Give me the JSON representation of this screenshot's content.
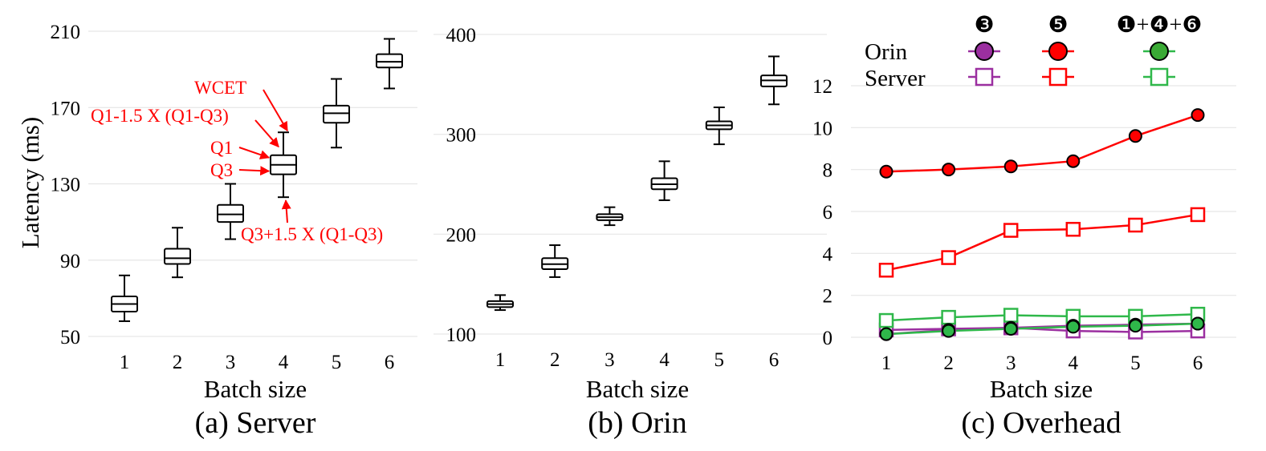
{
  "colors": {
    "orin_marker_purple": "#9b2fa0",
    "series_purple": "#9b2fa0",
    "series_red": "#ff0000",
    "series_green": "#2fb84a",
    "orin_marker_green": "#3aaa35",
    "annotation": "#ff0000",
    "grid": "#e6e6e6"
  },
  "chart_data": [
    {
      "type": "box",
      "caption": "(a) Server",
      "xlabel": "Batch size",
      "ylabel": "Latency (ms)",
      "ylim": [
        50,
        210
      ],
      "yticks": [
        50,
        90,
        130,
        170,
        210
      ],
      "categories": [
        "1",
        "2",
        "3",
        "4",
        "5",
        "6"
      ],
      "boxes": [
        {
          "x": "1",
          "lower_whisker": 58,
          "q1": 63,
          "median": 67,
          "q3": 71,
          "upper_whisker": 82
        },
        {
          "x": "2",
          "lower_whisker": 81,
          "q1": 88,
          "median": 91,
          "q3": 96,
          "upper_whisker": 107
        },
        {
          "x": "3",
          "lower_whisker": 101,
          "q1": 110,
          "median": 114,
          "q3": 119,
          "upper_whisker": 130
        },
        {
          "x": "4",
          "lower_whisker": 123,
          "q1": 135,
          "median": 140,
          "q3": 145,
          "upper_whisker": 157
        },
        {
          "x": "5",
          "lower_whisker": 149,
          "q1": 162,
          "median": 167,
          "q3": 171,
          "upper_whisker": 185
        },
        {
          "x": "6",
          "lower_whisker": 180,
          "q1": 191,
          "median": 194,
          "q3": 198,
          "upper_whisker": 206
        }
      ],
      "annotations": [
        "WCET",
        "Q1-1.5 X (Q1-Q3)",
        "Q1",
        "Q3",
        "Q3+1.5 X (Q1-Q3)"
      ]
    },
    {
      "type": "box",
      "caption": "(b) Orin",
      "xlabel": "Batch size",
      "ylim": [
        100,
        400
      ],
      "yticks": [
        100,
        200,
        300,
        400
      ],
      "categories": [
        "1",
        "2",
        "3",
        "4",
        "5",
        "6"
      ],
      "boxes": [
        {
          "x": "1",
          "lower_whisker": 124,
          "q1": 127,
          "median": 130,
          "q3": 133,
          "upper_whisker": 139
        },
        {
          "x": "2",
          "lower_whisker": 157,
          "q1": 165,
          "median": 170,
          "q3": 176,
          "upper_whisker": 189
        },
        {
          "x": "3",
          "lower_whisker": 209,
          "q1": 214,
          "median": 217,
          "q3": 220,
          "upper_whisker": 227
        },
        {
          "x": "4",
          "lower_whisker": 234,
          "q1": 245,
          "median": 250,
          "q3": 256,
          "upper_whisker": 273
        },
        {
          "x": "5",
          "lower_whisker": 290,
          "q1": 305,
          "median": 309,
          "q3": 313,
          "upper_whisker": 327
        },
        {
          "x": "6",
          "lower_whisker": 330,
          "q1": 348,
          "median": 354,
          "q3": 359,
          "upper_whisker": 378
        }
      ]
    },
    {
      "type": "line",
      "caption": "(c) Overhead",
      "xlabel": "Batch size",
      "ylim": [
        0,
        12
      ],
      "yticks": [
        0,
        2,
        4,
        6,
        8,
        10,
        12
      ],
      "x": [
        1,
        2,
        3,
        4,
        5,
        6
      ],
      "legend_rows": [
        "Orin",
        "Server"
      ],
      "legend_columns": [
        "❸",
        "❺",
        "❶+❹+❻"
      ],
      "series": [
        {
          "group": "Orin",
          "column": "❺",
          "color": "#ff0000",
          "values": [
            7.9,
            8.0,
            8.15,
            8.4,
            9.6,
            10.6
          ]
        },
        {
          "group": "Server",
          "column": "❺",
          "color": "#ff0000",
          "values": [
            3.2,
            3.8,
            5.1,
            5.15,
            5.35,
            5.85
          ]
        },
        {
          "group": "Orin",
          "column": "❸",
          "color": "#9b2fa0",
          "values": [
            0.15,
            0.35,
            0.45,
            0.55,
            0.6,
            0.65
          ]
        },
        {
          "group": "Server",
          "column": "❸",
          "color": "#9b2fa0",
          "values": [
            0.35,
            0.4,
            0.45,
            0.3,
            0.25,
            0.3
          ]
        },
        {
          "group": "Orin",
          "column": "❶+❹+❻",
          "color": "#2fb84a",
          "values": [
            0.15,
            0.3,
            0.4,
            0.5,
            0.55,
            0.65
          ]
        },
        {
          "group": "Server",
          "column": "❶+❹+❻",
          "color": "#2fb84a",
          "values": [
            0.8,
            0.95,
            1.05,
            1.0,
            1.0,
            1.1
          ]
        }
      ]
    }
  ]
}
